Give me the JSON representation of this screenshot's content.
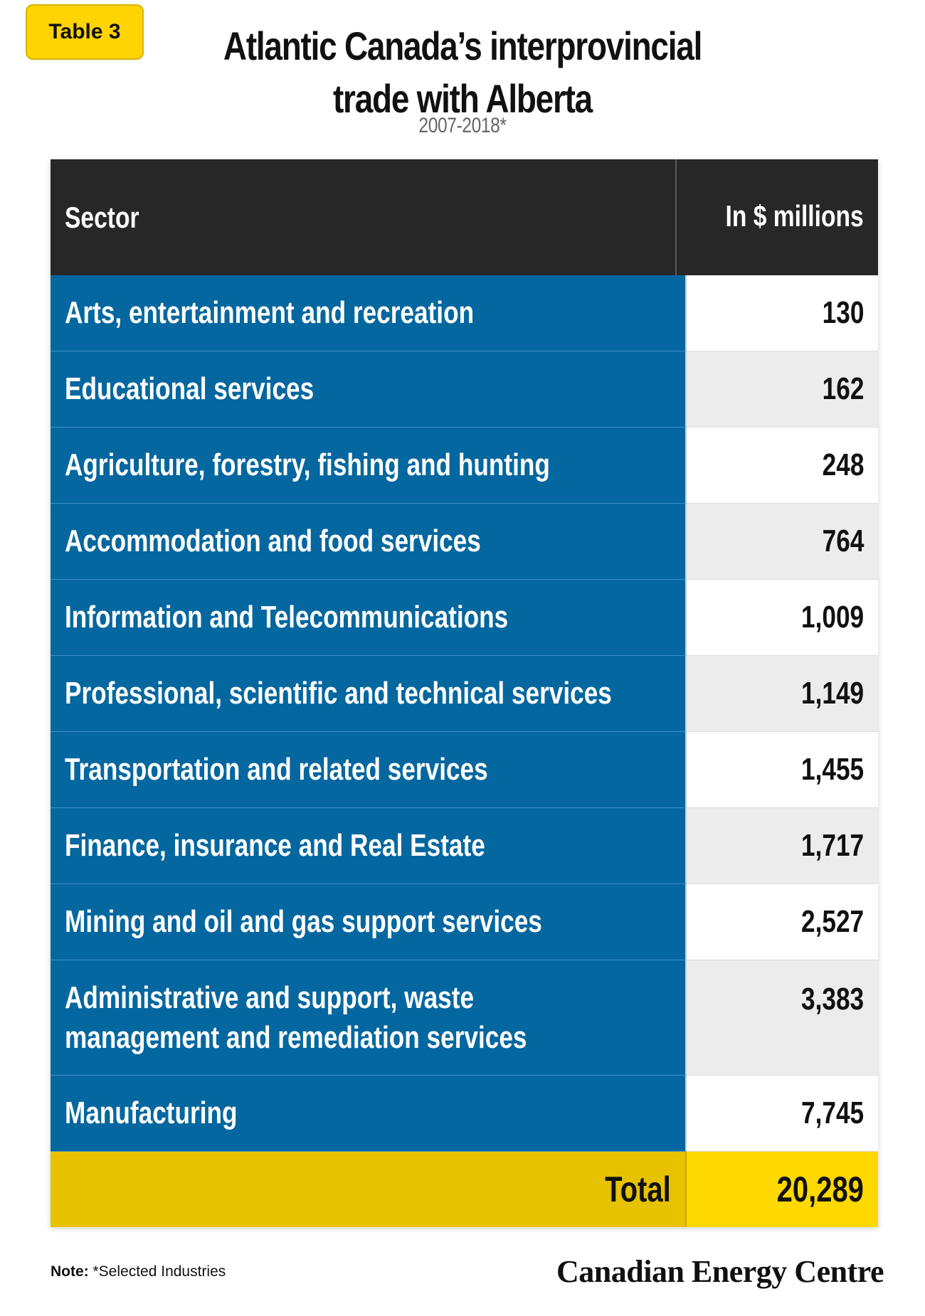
{
  "badge": "Table 3",
  "title_line1": "Atlantic Canada’s interprovincial",
  "title_line2": "trade with Alberta",
  "subtitle": "2007-2018*",
  "chart_data": {
    "type": "table",
    "columns": [
      "Sector",
      "In $ millions"
    ],
    "rows": [
      {
        "sector": "Arts, entertainment and recreation",
        "value": "130"
      },
      {
        "sector": "Educational services",
        "value": "162"
      },
      {
        "sector": "Agriculture, forestry, fishing and hunting",
        "value": "248"
      },
      {
        "sector": "Accommodation and food services",
        "value": "764"
      },
      {
        "sector": "Information and Telecommunications",
        "value": "1,009"
      },
      {
        "sector": "Professional, scientific and technical services",
        "value": "1,149"
      },
      {
        "sector": "Transportation and related services",
        "value": "1,455"
      },
      {
        "sector": "Finance, insurance and Real Estate",
        "value": "1,717"
      },
      {
        "sector": "Mining and oil and gas support services",
        "value": "2,527"
      },
      {
        "sector": "Administrative and support, waste management and remediation services",
        "value": "3,383"
      },
      {
        "sector": "Manufacturing",
        "value": "7,745"
      }
    ],
    "total_label": "Total",
    "total_value": "20,289"
  },
  "colors": {
    "sector_bg": "#05679F",
    "header_bg": "#272727",
    "accent_yellow": "#FFD800",
    "total_left": "#E6C200"
  },
  "note": {
    "label": "Note:",
    "text": " *Selected Industries"
  },
  "brand": "Canadian Energy Centre"
}
